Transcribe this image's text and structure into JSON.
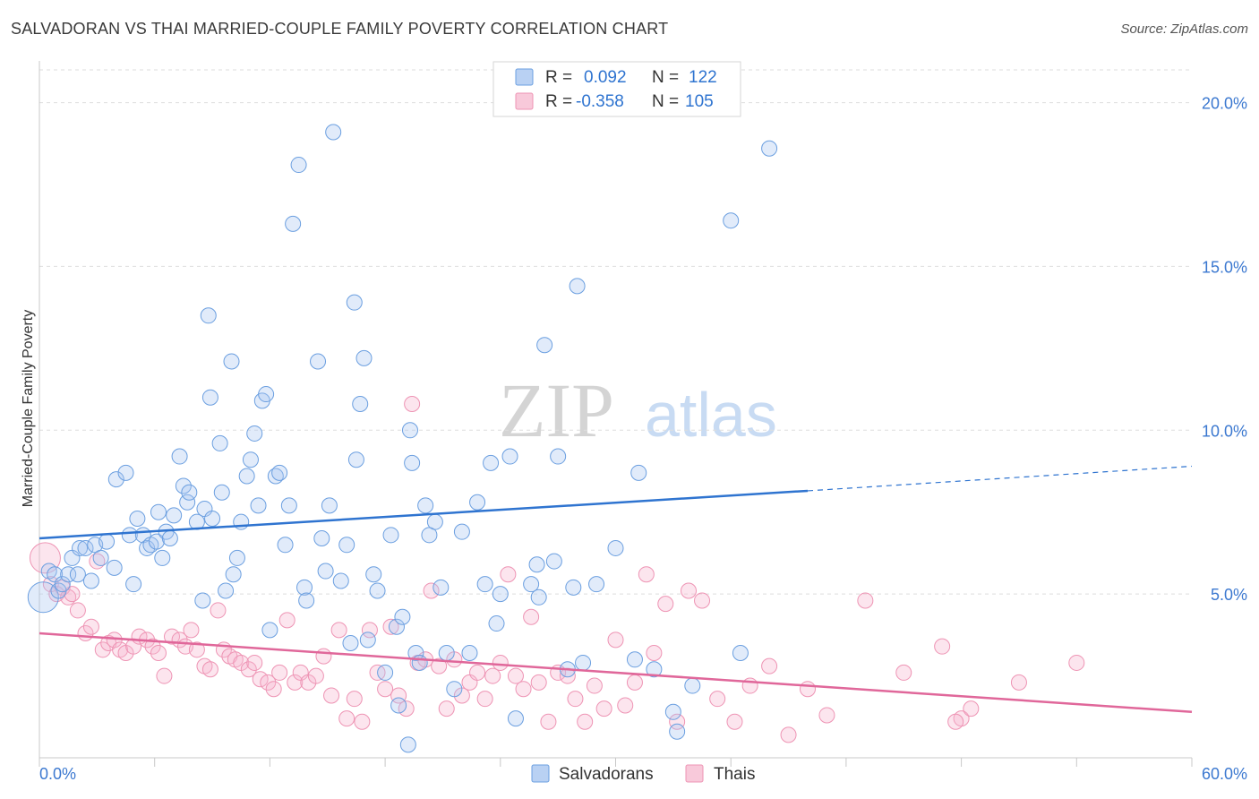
{
  "header": {
    "title": "SALVADORAN VS THAI MARRIED-COUPLE FAMILY POVERTY CORRELATION CHART",
    "source": "Source: ZipAtlas.com"
  },
  "watermark": {
    "zip": "ZIP",
    "atlas": "atlas"
  },
  "legend_top": {
    "rows": [
      {
        "r_label": "R =",
        "r_value": "0.092",
        "n_label": "N =",
        "n_value": "122",
        "color": "#6b9fe0"
      },
      {
        "r_label": "R =",
        "r_value": "-0.358",
        "n_label": "N =",
        "n_value": "105",
        "color": "#ee94b4"
      }
    ]
  },
  "legend_bottom": {
    "items": [
      {
        "label": "Salvadorans",
        "color": "#6b9fe0"
      },
      {
        "label": "Thais",
        "color": "#ee94b4"
      }
    ]
  },
  "chart_data": {
    "type": "scatter",
    "title": "SALVADORAN VS THAI MARRIED-COUPLE FAMILY POVERTY CORRELATION CHART",
    "xlabel": "",
    "ylabel": "Married-Couple Family Poverty",
    "xlim": [
      0,
      60
    ],
    "ylim": [
      0,
      21
    ],
    "x_tick_labels": [
      "0.0%",
      "60.0%"
    ],
    "y_ticks": [
      5,
      10,
      15,
      20
    ],
    "y_tick_labels": [
      "5.0%",
      "10.0%",
      "15.0%",
      "20.0%"
    ],
    "grid": true,
    "legend_position": "top-center",
    "colors": {
      "salvadorans": "#6b9fe0",
      "thais": "#ee94b4",
      "salv_line": "#2f74d0",
      "thai_line": "#e0679a"
    },
    "series": [
      {
        "name": "Salvadorans",
        "trend": {
          "x0": 0,
          "y0": 6.7,
          "x1": 40,
          "y1": 8.15,
          "dashed_to_x": 60,
          "dashed_to_y": 8.9
        },
        "points": [
          [
            0.2,
            4.9
          ],
          [
            0.5,
            5.7
          ],
          [
            0.8,
            5.6
          ],
          [
            1.0,
            5.1
          ],
          [
            1.2,
            5.3
          ],
          [
            1.5,
            5.6
          ],
          [
            1.7,
            6.1
          ],
          [
            2.0,
            5.6
          ],
          [
            2.1,
            6.4
          ],
          [
            2.4,
            6.4
          ],
          [
            2.7,
            5.4
          ],
          [
            2.9,
            6.5
          ],
          [
            3.2,
            6.1
          ],
          [
            3.5,
            6.6
          ],
          [
            3.9,
            5.8
          ],
          [
            4.0,
            8.5
          ],
          [
            4.5,
            8.7
          ],
          [
            4.7,
            6.8
          ],
          [
            4.9,
            5.3
          ],
          [
            5.1,
            7.3
          ],
          [
            5.4,
            6.8
          ],
          [
            5.6,
            6.4
          ],
          [
            5.8,
            6.5
          ],
          [
            6.1,
            6.6
          ],
          [
            6.2,
            7.5
          ],
          [
            6.4,
            6.1
          ],
          [
            6.6,
            6.9
          ],
          [
            6.8,
            6.7
          ],
          [
            7.0,
            7.4
          ],
          [
            7.3,
            9.2
          ],
          [
            7.5,
            8.3
          ],
          [
            7.7,
            7.8
          ],
          [
            7.8,
            8.1
          ],
          [
            8.2,
            7.2
          ],
          [
            8.5,
            4.8
          ],
          [
            8.6,
            7.6
          ],
          [
            8.8,
            13.5
          ],
          [
            8.9,
            11.0
          ],
          [
            9.0,
            7.3
          ],
          [
            9.4,
            9.6
          ],
          [
            9.5,
            8.1
          ],
          [
            9.7,
            5.1
          ],
          [
            10.0,
            12.1
          ],
          [
            10.1,
            5.6
          ],
          [
            10.3,
            6.1
          ],
          [
            10.5,
            7.2
          ],
          [
            10.8,
            8.6
          ],
          [
            11.0,
            9.1
          ],
          [
            11.2,
            9.9
          ],
          [
            11.4,
            7.7
          ],
          [
            11.6,
            10.9
          ],
          [
            11.8,
            11.1
          ],
          [
            12.0,
            3.9
          ],
          [
            12.3,
            8.6
          ],
          [
            12.5,
            8.7
          ],
          [
            12.8,
            6.5
          ],
          [
            13.0,
            7.7
          ],
          [
            13.2,
            16.3
          ],
          [
            13.5,
            18.1
          ],
          [
            13.8,
            5.2
          ],
          [
            13.9,
            4.8
          ],
          [
            14.5,
            12.1
          ],
          [
            14.7,
            6.7
          ],
          [
            14.9,
            5.7
          ],
          [
            15.1,
            7.7
          ],
          [
            15.3,
            19.1
          ],
          [
            15.7,
            5.4
          ],
          [
            16.0,
            6.5
          ],
          [
            16.2,
            3.5
          ],
          [
            16.4,
            13.9
          ],
          [
            16.5,
            9.1
          ],
          [
            16.7,
            10.8
          ],
          [
            16.9,
            12.2
          ],
          [
            17.1,
            3.6
          ],
          [
            17.4,
            5.6
          ],
          [
            17.6,
            5.1
          ],
          [
            18.0,
            2.6
          ],
          [
            18.3,
            6.8
          ],
          [
            18.6,
            4.0
          ],
          [
            18.7,
            1.6
          ],
          [
            18.9,
            4.3
          ],
          [
            19.2,
            0.4
          ],
          [
            19.3,
            10.0
          ],
          [
            19.4,
            9.0
          ],
          [
            19.6,
            3.2
          ],
          [
            19.8,
            2.9
          ],
          [
            20.1,
            7.7
          ],
          [
            20.3,
            6.8
          ],
          [
            20.6,
            7.2
          ],
          [
            20.9,
            5.2
          ],
          [
            21.2,
            3.2
          ],
          [
            21.6,
            2.1
          ],
          [
            22.0,
            6.9
          ],
          [
            22.4,
            3.2
          ],
          [
            22.8,
            7.8
          ],
          [
            23.2,
            5.3
          ],
          [
            23.5,
            9.0
          ],
          [
            23.8,
            4.1
          ],
          [
            24.0,
            5.0
          ],
          [
            24.5,
            9.2
          ],
          [
            24.8,
            1.2
          ],
          [
            25.6,
            5.3
          ],
          [
            25.9,
            5.9
          ],
          [
            26.0,
            4.9
          ],
          [
            26.3,
            12.6
          ],
          [
            26.8,
            6.0
          ],
          [
            27.0,
            9.2
          ],
          [
            27.5,
            2.7
          ],
          [
            27.8,
            5.2
          ],
          [
            28.0,
            14.4
          ],
          [
            28.3,
            2.9
          ],
          [
            29.0,
            5.3
          ],
          [
            30.0,
            6.4
          ],
          [
            31.0,
            3.0
          ],
          [
            31.2,
            8.7
          ],
          [
            32.0,
            2.7
          ],
          [
            33.0,
            1.4
          ],
          [
            33.2,
            0.8
          ],
          [
            36.0,
            16.4
          ],
          [
            38.0,
            18.6
          ],
          [
            36.5,
            3.2
          ],
          [
            34.0,
            2.2
          ]
        ]
      },
      {
        "name": "Thais",
        "trend": {
          "x0": 0,
          "y0": 3.8,
          "x1": 60,
          "y1": 1.4
        },
        "points": [
          [
            0.3,
            6.1
          ],
          [
            0.6,
            5.3
          ],
          [
            0.9,
            5.0
          ],
          [
            1.2,
            5.2
          ],
          [
            1.5,
            4.9
          ],
          [
            1.7,
            5.0
          ],
          [
            2.0,
            4.5
          ],
          [
            2.4,
            3.8
          ],
          [
            2.7,
            4.0
          ],
          [
            3.0,
            6.0
          ],
          [
            3.3,
            3.3
          ],
          [
            3.6,
            3.5
          ],
          [
            3.9,
            3.6
          ],
          [
            4.2,
            3.3
          ],
          [
            4.5,
            3.2
          ],
          [
            4.9,
            3.4
          ],
          [
            5.2,
            3.7
          ],
          [
            5.6,
            3.6
          ],
          [
            5.9,
            3.4
          ],
          [
            6.2,
            3.2
          ],
          [
            6.5,
            2.5
          ],
          [
            6.9,
            3.7
          ],
          [
            7.3,
            3.6
          ],
          [
            7.6,
            3.4
          ],
          [
            7.9,
            3.9
          ],
          [
            8.2,
            3.3
          ],
          [
            8.6,
            2.8
          ],
          [
            8.9,
            2.7
          ],
          [
            9.3,
            4.5
          ],
          [
            9.6,
            3.3
          ],
          [
            9.9,
            3.1
          ],
          [
            10.2,
            3.0
          ],
          [
            10.5,
            2.9
          ],
          [
            10.9,
            2.7
          ],
          [
            11.2,
            2.9
          ],
          [
            11.5,
            2.4
          ],
          [
            11.9,
            2.3
          ],
          [
            12.2,
            2.1
          ],
          [
            12.5,
            2.6
          ],
          [
            12.9,
            4.2
          ],
          [
            13.3,
            2.3
          ],
          [
            13.6,
            2.6
          ],
          [
            14.0,
            2.3
          ],
          [
            14.4,
            2.5
          ],
          [
            14.8,
            3.1
          ],
          [
            15.2,
            1.9
          ],
          [
            15.6,
            3.9
          ],
          [
            16.0,
            1.2
          ],
          [
            16.4,
            1.8
          ],
          [
            16.8,
            1.1
          ],
          [
            17.2,
            3.9
          ],
          [
            17.6,
            2.6
          ],
          [
            18.0,
            2.1
          ],
          [
            18.3,
            4.0
          ],
          [
            18.7,
            1.9
          ],
          [
            19.1,
            1.5
          ],
          [
            19.4,
            10.8
          ],
          [
            19.7,
            2.9
          ],
          [
            20.1,
            3.0
          ],
          [
            20.4,
            5.1
          ],
          [
            20.8,
            2.8
          ],
          [
            21.2,
            1.5
          ],
          [
            21.6,
            3.0
          ],
          [
            22.0,
            1.9
          ],
          [
            22.4,
            2.3
          ],
          [
            22.8,
            2.6
          ],
          [
            23.2,
            1.8
          ],
          [
            23.6,
            2.5
          ],
          [
            24.0,
            2.9
          ],
          [
            24.4,
            5.6
          ],
          [
            24.8,
            2.5
          ],
          [
            25.2,
            2.1
          ],
          [
            25.6,
            4.3
          ],
          [
            26.0,
            2.3
          ],
          [
            26.5,
            1.1
          ],
          [
            27.0,
            2.6
          ],
          [
            27.5,
            2.5
          ],
          [
            27.9,
            1.8
          ],
          [
            28.4,
            1.1
          ],
          [
            28.9,
            2.2
          ],
          [
            29.4,
            1.5
          ],
          [
            30.0,
            3.6
          ],
          [
            30.5,
            1.6
          ],
          [
            31.0,
            2.3
          ],
          [
            31.6,
            5.6
          ],
          [
            32.0,
            3.2
          ],
          [
            32.6,
            4.7
          ],
          [
            33.2,
            1.1
          ],
          [
            33.8,
            5.1
          ],
          [
            34.5,
            4.8
          ],
          [
            35.3,
            1.8
          ],
          [
            36.2,
            1.1
          ],
          [
            37.0,
            2.2
          ],
          [
            38.0,
            2.8
          ],
          [
            39.0,
            0.7
          ],
          [
            40.0,
            2.1
          ],
          [
            41.0,
            1.3
          ],
          [
            43.0,
            4.8
          ],
          [
            45.0,
            2.6
          ],
          [
            47.0,
            3.4
          ],
          [
            48.0,
            1.2
          ],
          [
            48.5,
            1.5
          ],
          [
            47.7,
            1.1
          ],
          [
            51.0,
            2.3
          ],
          [
            54.0,
            2.9
          ]
        ]
      }
    ]
  }
}
